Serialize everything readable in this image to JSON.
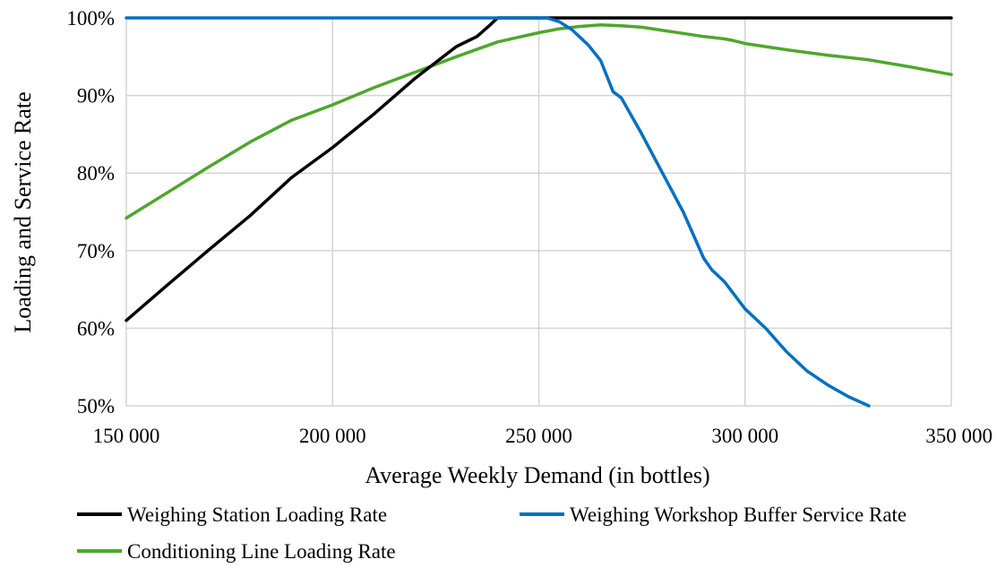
{
  "chart_data": {
    "type": "line",
    "xlabel": "Average Weekly Demand (in bottles)",
    "ylabel": "Loading and Service Rate",
    "xlim": [
      150000,
      350000
    ],
    "ylim": [
      50,
      100
    ],
    "x_ticks": [
      150000,
      200000,
      250000,
      300000,
      350000
    ],
    "x_tick_labels": [
      "150 000",
      "200 000",
      "250 000",
      "300 000",
      "350 000"
    ],
    "y_ticks": [
      50,
      60,
      70,
      80,
      90,
      100
    ],
    "y_tick_labels": [
      "50%",
      "60%",
      "70%",
      "80%",
      "90%",
      "100%"
    ],
    "grid": true,
    "legend_position": "bottom",
    "series": [
      {
        "name": "Weighing Station Loading Rate",
        "color": "#000000",
        "points": [
          [
            150000,
            61
          ],
          [
            160000,
            65.6
          ],
          [
            170000,
            70.1
          ],
          [
            180000,
            74.5
          ],
          [
            190000,
            79.4
          ],
          [
            200000,
            83.3
          ],
          [
            210000,
            87.6
          ],
          [
            220000,
            92.2
          ],
          [
            230000,
            96.3
          ],
          [
            235000,
            97.6
          ],
          [
            238000,
            99
          ],
          [
            240000,
            100
          ],
          [
            350000,
            100
          ]
        ]
      },
      {
        "name": "Weighing Workshop Buffer Service Rate",
        "color": "#0070C0",
        "points": [
          [
            150000,
            100
          ],
          [
            252000,
            100
          ],
          [
            255000,
            99.5
          ],
          [
            258000,
            98.5
          ],
          [
            262000,
            96.5
          ],
          [
            265000,
            94.5
          ],
          [
            268000,
            90.5
          ],
          [
            270000,
            89.7
          ],
          [
            275000,
            85
          ],
          [
            280000,
            80
          ],
          [
            285000,
            75
          ],
          [
            290000,
            69
          ],
          [
            292000,
            67.5
          ],
          [
            295000,
            66
          ],
          [
            300000,
            62.5
          ],
          [
            305000,
            60
          ],
          [
            310000,
            57
          ],
          [
            315000,
            54.5
          ],
          [
            320000,
            52.7
          ],
          [
            325000,
            51.2
          ],
          [
            330000,
            49.8
          ]
        ]
      },
      {
        "name": "Conditioning Line Loading Rate",
        "color": "#4EA72E",
        "points": [
          [
            150000,
            74.2
          ],
          [
            160000,
            77.5
          ],
          [
            170000,
            80.8
          ],
          [
            180000,
            84
          ],
          [
            190000,
            86.8
          ],
          [
            200000,
            88.8
          ],
          [
            210000,
            91
          ],
          [
            220000,
            93
          ],
          [
            230000,
            95
          ],
          [
            240000,
            96.9
          ],
          [
            250000,
            98.1
          ],
          [
            255000,
            98.6
          ],
          [
            260000,
            98.9
          ],
          [
            265000,
            99.1
          ],
          [
            270000,
            99
          ],
          [
            275000,
            98.8
          ],
          [
            280000,
            98.4
          ],
          [
            285000,
            98
          ],
          [
            290000,
            97.6
          ],
          [
            295000,
            97.3
          ],
          [
            297000,
            97.1
          ],
          [
            300000,
            96.7
          ],
          [
            310000,
            95.9
          ],
          [
            320000,
            95.2
          ],
          [
            330000,
            94.6
          ],
          [
            340000,
            93.7
          ],
          [
            350000,
            92.7
          ]
        ]
      }
    ]
  }
}
